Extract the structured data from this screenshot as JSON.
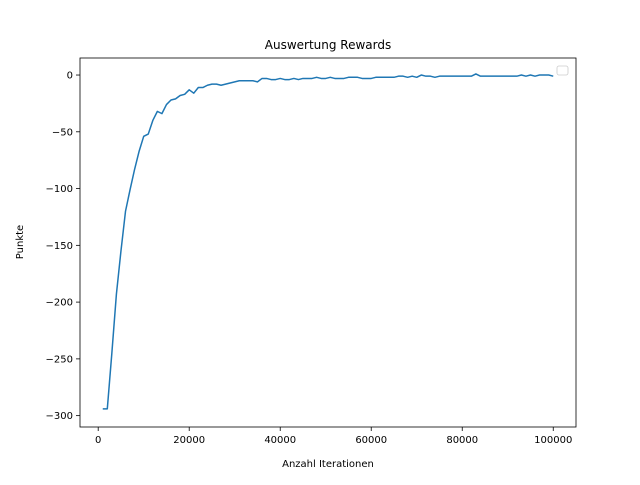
{
  "chart_data": {
    "type": "line",
    "title": "Auswertung Rewards",
    "xlabel": "Anzahl Iterationen",
    "ylabel": "Punkte",
    "xlim": [
      -4000,
      105000
    ],
    "ylim": [
      -310,
      15
    ],
    "xticks": [
      0,
      20000,
      40000,
      60000,
      80000,
      100000
    ],
    "xtick_labels": [
      "0",
      "20000",
      "40000",
      "60000",
      "80000",
      "100000"
    ],
    "yticks": [
      0,
      -50,
      -100,
      -150,
      -200,
      -250,
      -300
    ],
    "ytick_labels": [
      "0",
      "−50",
      "−100",
      "−150",
      "−200",
      "−250",
      "−300"
    ],
    "grid": false,
    "legend": {
      "position": "upper right",
      "entries": []
    },
    "line_color": "#1f77b4",
    "series": [
      {
        "x": [
          1000,
          2000,
          3000,
          4000,
          5000,
          6000,
          7000,
          8000,
          9000,
          10000,
          11000,
          12000,
          13000,
          14000,
          15000,
          16000,
          17000,
          18000,
          19000,
          20000,
          21000,
          22000,
          23000,
          24000,
          25000,
          26000,
          27000,
          28000,
          29000,
          30000,
          31000,
          32000,
          33000,
          34000,
          35000,
          36000,
          37000,
          38000,
          39000,
          40000,
          41000,
          42000,
          43000,
          44000,
          45000,
          46000,
          47000,
          48000,
          49000,
          50000,
          51000,
          52000,
          53000,
          54000,
          55000,
          56000,
          57000,
          58000,
          59000,
          60000,
          61000,
          62000,
          63000,
          64000,
          65000,
          66000,
          67000,
          68000,
          69000,
          70000,
          71000,
          72000,
          73000,
          74000,
          75000,
          76000,
          77000,
          78000,
          79000,
          80000,
          81000,
          82000,
          83000,
          84000,
          85000,
          86000,
          87000,
          88000,
          89000,
          90000,
          91000,
          92000,
          93000,
          94000,
          95000,
          96000,
          97000,
          98000,
          99000,
          100000
        ],
        "values": [
          -294,
          -294,
          -245,
          -193,
          -155,
          -120,
          -101,
          -83,
          -67,
          -54,
          -52,
          -40,
          -32,
          -34,
          -26,
          -22,
          -21,
          -18,
          -17,
          -13,
          -16,
          -11,
          -11,
          -9,
          -8,
          -8,
          -9,
          -8,
          -7,
          -6,
          -5,
          -5,
          -5,
          -5,
          -6,
          -3,
          -3,
          -4,
          -4,
          -3,
          -4,
          -4,
          -3,
          -4,
          -3,
          -3,
          -3,
          -2,
          -3,
          -3,
          -2,
          -3,
          -3,
          -3,
          -2,
          -2,
          -2,
          -3,
          -3,
          -3,
          -2,
          -2,
          -2,
          -2,
          -2,
          -1,
          -1,
          -2,
          -1,
          -2,
          0,
          -1,
          -1,
          -2,
          -1,
          -1,
          -1,
          -1,
          -1,
          -1,
          -1,
          -1,
          1,
          -1,
          -1,
          -1,
          -1,
          -1,
          -1,
          -1,
          -1,
          -1,
          0,
          -1,
          0,
          -1,
          0,
          0,
          0,
          -1
        ]
      }
    ]
  }
}
